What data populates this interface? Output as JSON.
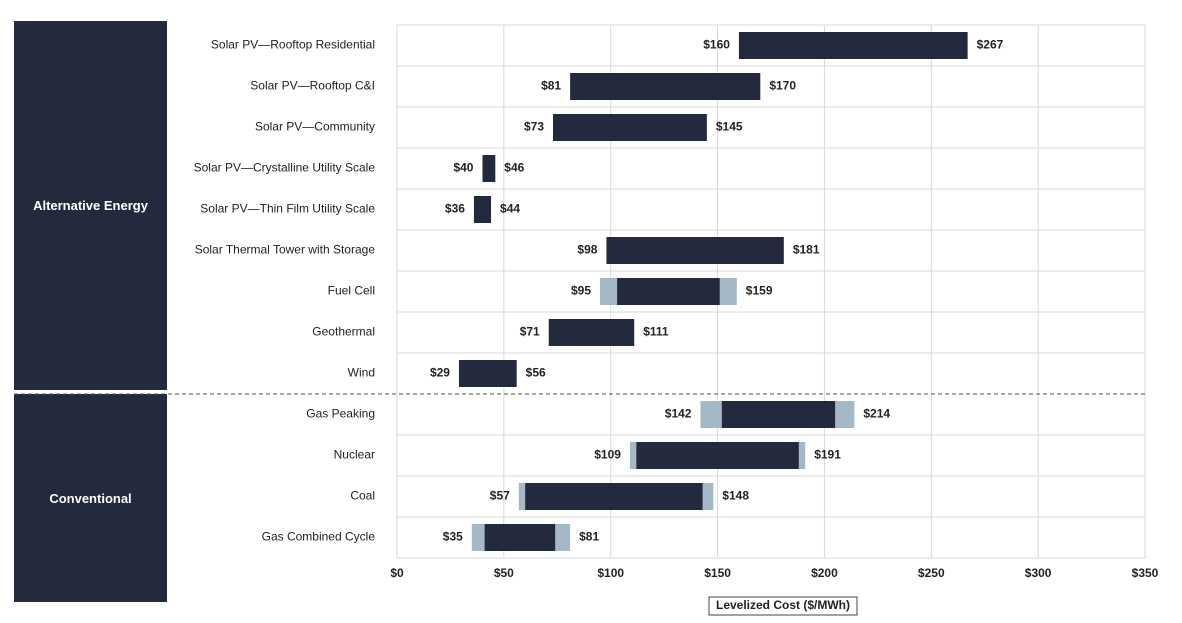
{
  "chart_data": {
    "type": "bar",
    "orientation": "horizontal-range",
    "xlabel": "Levelized Cost ($/MWh)",
    "xlim": [
      0,
      350
    ],
    "xticks": [
      0,
      50,
      100,
      150,
      200,
      250,
      300,
      350
    ],
    "xtick_labels": [
      "$0",
      "$50",
      "$100",
      "$150",
      "$200",
      "$250",
      "$300",
      "$350"
    ],
    "grid": true,
    "groups": [
      {
        "name": "Alternative Energy",
        "row_start": 0,
        "row_end": 8
      },
      {
        "name": "Conventional",
        "row_start": 9,
        "row_end": 12
      }
    ],
    "rows": [
      {
        "category": "Solar PV—Rooftop Residential",
        "low": 160,
        "high": 267,
        "low_label": "$160",
        "high_label": "$267"
      },
      {
        "category": "Solar PV—Rooftop C&I",
        "low": 81,
        "high": 170,
        "low_label": "$81",
        "high_label": "$170"
      },
      {
        "category": "Solar PV—Community",
        "low": 73,
        "high": 145,
        "low_label": "$73",
        "high_label": "$145"
      },
      {
        "category": "Solar PV—Crystalline Utility Scale",
        "low": 40,
        "high": 46,
        "low_label": "$40",
        "high_label": "$46"
      },
      {
        "category": "Solar PV—Thin Film Utility Scale",
        "low": 36,
        "high": 44,
        "low_label": "$36",
        "high_label": "$44"
      },
      {
        "category": "Solar Thermal Tower with Storage",
        "low": 98,
        "high": 181,
        "low_label": "$98",
        "high_label": "$181"
      },
      {
        "category": "Fuel Cell",
        "low": 95,
        "high": 159,
        "core_low": 103,
        "core_high": 151,
        "low_label": "$95",
        "high_label": "$159"
      },
      {
        "category": "Geothermal",
        "low": 71,
        "high": 111,
        "low_label": "$71",
        "high_label": "$111"
      },
      {
        "category": "Wind",
        "low": 29,
        "high": 56,
        "low_label": "$29",
        "high_label": "$56"
      },
      {
        "category": "Gas Peaking",
        "low": 142,
        "high": 214,
        "core_low": 152,
        "core_high": 205,
        "low_label": "$142",
        "high_label": "$214"
      },
      {
        "category": "Nuclear",
        "low": 109,
        "high": 191,
        "core_low": 112,
        "core_high": 188,
        "low_label": "$109",
        "high_label": "$191"
      },
      {
        "category": "Coal",
        "low": 57,
        "high": 148,
        "core_low": 60,
        "core_high": 143,
        "low_label": "$57",
        "high_label": "$148"
      },
      {
        "category": "Gas Combined Cycle",
        "low": 35,
        "high": 81,
        "core_low": 41,
        "core_high": 74,
        "low_label": "$35",
        "high_label": "$81"
      }
    ],
    "colors": {
      "core_bar": "#242a3d",
      "range_bar": "#a5b8c6",
      "group_box": "#242a3d",
      "grid": "#d9d9d9",
      "text": "#222222"
    }
  }
}
